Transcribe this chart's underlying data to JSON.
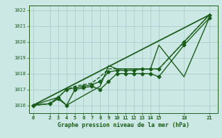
{
  "title": "",
  "xlabel": "Graphe pression niveau de la mer (hPa)",
  "bg_color": "#cce8e4",
  "grid_color": "#aacccc",
  "line_color": "#1a5c1a",
  "ylim": [
    1015.5,
    1022.3
  ],
  "xlim": [
    -0.5,
    22
  ],
  "yticks": [
    1016,
    1017,
    1018,
    1019,
    1020,
    1021,
    1022
  ],
  "xticks": [
    0,
    2,
    3,
    4,
    5,
    6,
    7,
    8,
    9,
    10,
    11,
    12,
    13,
    14,
    15,
    18,
    21
  ],
  "series": [
    {
      "x": [
        0,
        2,
        3,
        4,
        5,
        6,
        7,
        8,
        9,
        10,
        11,
        12,
        13,
        14,
        15,
        18,
        21
      ],
      "y": [
        1016.0,
        1016.1,
        1016.5,
        1017.0,
        1017.1,
        1017.2,
        1017.3,
        1017.5,
        1018.1,
        1018.2,
        1018.2,
        1018.2,
        1018.3,
        1018.3,
        1018.3,
        1020.0,
        1021.7
      ],
      "marker": "D",
      "markersize": 2.5,
      "linewidth": 1.0,
      "linestyle": "-"
    },
    {
      "x": [
        0,
        2,
        3,
        4,
        5,
        6,
        7,
        8,
        9,
        10,
        11,
        12,
        13,
        14,
        15,
        18,
        21
      ],
      "y": [
        1016.0,
        1016.1,
        1016.4,
        1016.0,
        1017.0,
        1017.1,
        1017.2,
        1017.0,
        1017.5,
        1018.0,
        1018.0,
        1018.0,
        1018.0,
        1018.0,
        1017.8,
        1019.8,
        1021.5
      ],
      "marker": "D",
      "markersize": 2.5,
      "linewidth": 1.0,
      "linestyle": "-"
    },
    {
      "x": [
        0,
        2,
        3,
        4,
        5,
        6,
        7,
        8,
        9,
        10,
        11,
        12,
        13,
        14,
        15,
        18,
        21
      ],
      "y": [
        1016.0,
        1016.1,
        1016.5,
        1017.0,
        1017.2,
        1017.3,
        1017.4,
        1017.8,
        1018.3,
        1018.3,
        1018.3,
        1018.3,
        1018.3,
        1018.3,
        1018.3,
        1020.0,
        1021.7
      ],
      "marker": null,
      "markersize": 0,
      "linewidth": 1.0,
      "linestyle": "--"
    },
    {
      "x": [
        0,
        21
      ],
      "y": [
        1016.0,
        1021.7
      ],
      "marker": null,
      "markersize": 0,
      "linewidth": 1.3,
      "linestyle": "-"
    },
    {
      "x": [
        0,
        3,
        4,
        8,
        9,
        10,
        11,
        12,
        13,
        14,
        15,
        18,
        21
      ],
      "y": [
        1016.0,
        1016.5,
        1016.0,
        1017.2,
        1018.5,
        1018.3,
        1018.3,
        1018.3,
        1018.3,
        1018.3,
        1019.8,
        1017.8,
        1021.5
      ],
      "marker": null,
      "markersize": 0,
      "linewidth": 1.0,
      "linestyle": "-"
    }
  ]
}
